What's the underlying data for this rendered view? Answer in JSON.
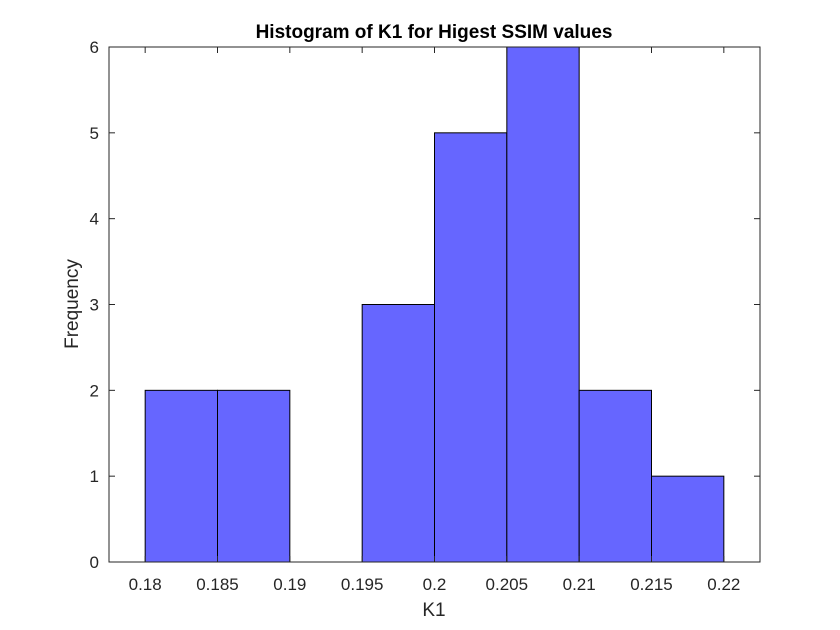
{
  "chart_data": {
    "type": "bar",
    "subtype": "histogram",
    "title": "Histogram of K1 for Higest SSIM values",
    "xlabel": "K1",
    "ylabel": "Frequency",
    "xlim": [
      0.1775,
      0.2225
    ],
    "ylim": [
      0,
      6
    ],
    "bin_edges": [
      0.18,
      0.185,
      0.19,
      0.195,
      0.2,
      0.205,
      0.21,
      0.215,
      0.22
    ],
    "values": [
      2,
      2,
      0,
      3,
      5,
      6,
      2,
      1
    ],
    "xticks": [
      0.18,
      0.185,
      0.19,
      0.195,
      0.2,
      0.205,
      0.21,
      0.215,
      0.22
    ],
    "xtick_labels": [
      "0.18",
      "0.185",
      "0.19",
      "0.195",
      "0.2",
      "0.205",
      "0.21",
      "0.215",
      "0.22"
    ],
    "yticks": [
      0,
      1,
      2,
      3,
      4,
      5,
      6
    ],
    "ytick_labels": [
      "0",
      "1",
      "2",
      "3",
      "4",
      "5",
      "6"
    ],
    "bar_color": "#6666ff",
    "edge_color": "#000000",
    "grid": false,
    "box": true
  }
}
